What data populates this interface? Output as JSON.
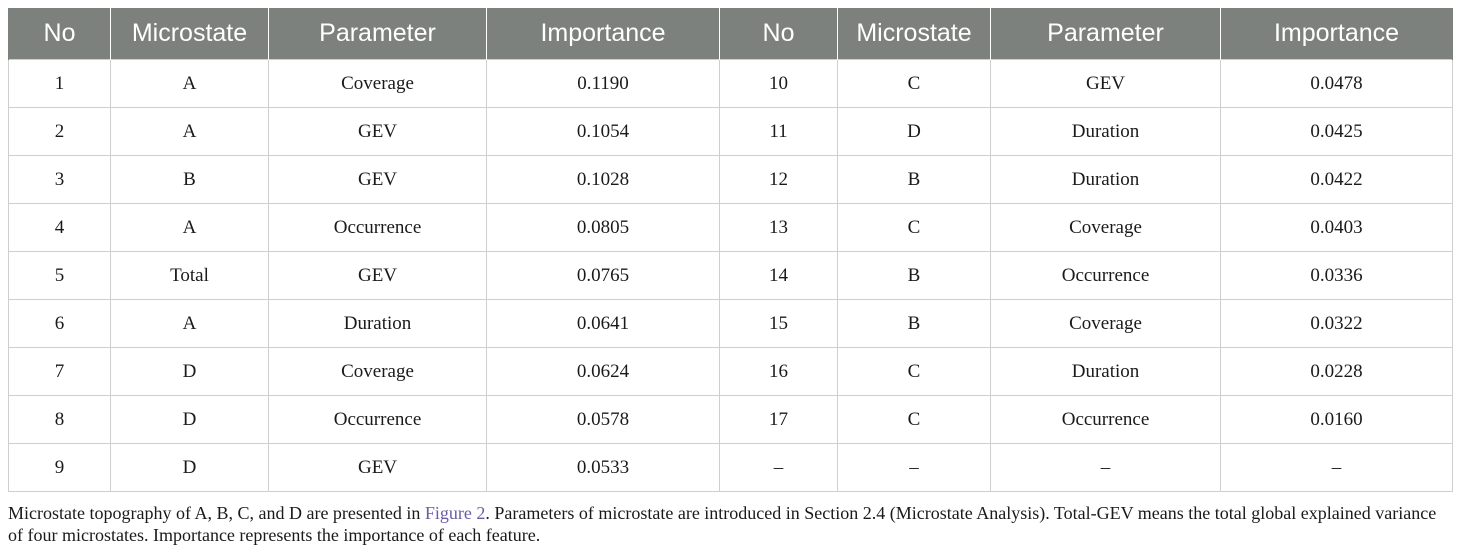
{
  "table": {
    "headers": [
      "No",
      "Microstate",
      "Parameter",
      "Importance",
      "No",
      "Microstate",
      "Parameter",
      "Importance"
    ],
    "rows": [
      [
        "1",
        "A",
        "Coverage",
        "0.1190",
        "10",
        "C",
        "GEV",
        "0.0478"
      ],
      [
        "2",
        "A",
        "GEV",
        "0.1054",
        "11",
        "D",
        "Duration",
        "0.0425"
      ],
      [
        "3",
        "B",
        "GEV",
        "0.1028",
        "12",
        "B",
        "Duration",
        "0.0422"
      ],
      [
        "4",
        "A",
        "Occurrence",
        "0.0805",
        "13",
        "C",
        "Coverage",
        "0.0403"
      ],
      [
        "5",
        "Total",
        "GEV",
        "0.0765",
        "14",
        "B",
        "Occurrence",
        "0.0336"
      ],
      [
        "6",
        "A",
        "Duration",
        "0.0641",
        "15",
        "B",
        "Coverage",
        "0.0322"
      ],
      [
        "7",
        "D",
        "Coverage",
        "0.0624",
        "16",
        "C",
        "Duration",
        "0.0228"
      ],
      [
        "8",
        "D",
        "Occurrence",
        "0.0578",
        "17",
        "C",
        "Occurrence",
        "0.0160"
      ],
      [
        "9",
        "D",
        "GEV",
        "0.0533",
        "–",
        "–",
        "–",
        "–"
      ]
    ]
  },
  "footnote": {
    "before_link": "Microstate topography of A, B, C, and D are presented in ",
    "link_text": "Figure 2",
    "after_link": ". Parameters of microstate are introduced in Section 2.4 (Microstate Analysis). Total-GEV means the total global explained variance of four microstates. Importance represents the importance of each feature."
  },
  "colors": {
    "header_bg": "#7c817e",
    "header_text": "#ffffff",
    "grid": "#cfcfcf",
    "link": "#6b5ba8"
  }
}
